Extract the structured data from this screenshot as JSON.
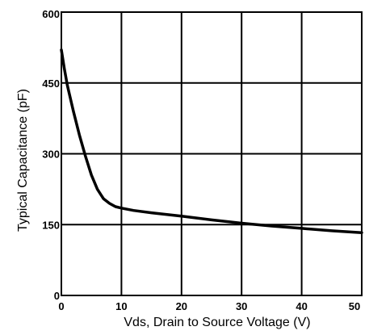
{
  "chart_data": {
    "type": "line",
    "title": "",
    "xlabel": "Vds, Drain to Source Voltage (V)",
    "ylabel": "Typical Capacitance (pF)",
    "xlim": [
      0,
      50
    ],
    "ylim": [
      0,
      600
    ],
    "x_ticks": [
      "0",
      "10",
      "20",
      "30",
      "40",
      "50"
    ],
    "y_ticks": [
      "0",
      "150",
      "300",
      "450",
      "600"
    ],
    "grid": true,
    "series": [
      {
        "x": [
          0,
          0.5,
          1,
          2,
          3,
          4,
          5,
          6,
          7,
          8,
          9,
          10,
          12,
          15,
          20,
          25,
          30,
          35,
          40,
          45,
          50
        ],
        "y": [
          520,
          480,
          445,
          390,
          340,
          295,
          255,
          225,
          205,
          195,
          188,
          185,
          180,
          175,
          168,
          160,
          153,
          147,
          142,
          137,
          133
        ]
      }
    ],
    "line_color": "#000000",
    "grid_color": "#000000"
  }
}
